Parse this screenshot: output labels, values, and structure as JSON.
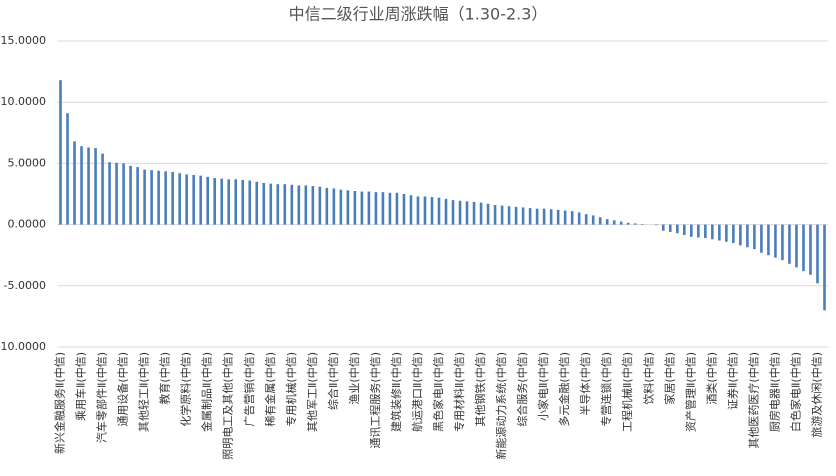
{
  "chart_data": {
    "type": "bar",
    "title": "中信二级行业周涨跌幅（1.30-2.3）",
    "color": "#4a7ebb",
    "grid": true,
    "ylim": [
      -10,
      15
    ],
    "yticks": [
      {
        "value": 15,
        "label": "15.0000"
      },
      {
        "value": 10,
        "label": "10.0000"
      },
      {
        "value": 5,
        "label": "5.0000"
      },
      {
        "value": 0,
        "label": "0.0000"
      },
      {
        "value": -5,
        "label": "-5.0000"
      },
      {
        "value": -10,
        "label": "-10.0000"
      }
    ],
    "categories": [
      "新兴金融服务Ⅱ(中信)",
      null,
      null,
      "乘用车Ⅱ(中信)",
      null,
      null,
      "汽车零部件Ⅱ(中信)",
      null,
      null,
      "通用设备(中信)",
      null,
      null,
      "其他轻工Ⅱ(中信)",
      null,
      null,
      "教育(中信)",
      null,
      null,
      "化学原料(中信)",
      null,
      null,
      "金属制品Ⅱ(中信)",
      null,
      null,
      "照明电工及其他(中信)",
      null,
      null,
      "广告营销(中信)",
      null,
      null,
      "稀有金属(中信)",
      null,
      null,
      "专用机械(中信)",
      null,
      null,
      "其他军工Ⅱ(中信)",
      null,
      null,
      "综合Ⅱ(中信)",
      null,
      null,
      "渔业(中信)",
      null,
      null,
      "通讯工程服务(中信)",
      null,
      null,
      "建筑装修Ⅱ(中信)",
      null,
      null,
      "航运港口Ⅱ(中信)",
      null,
      null,
      "黑色家电Ⅱ(中信)",
      null,
      null,
      "专用材料Ⅱ(中信)",
      null,
      null,
      "其他钢铁(中信)",
      null,
      null,
      "新能源动力系统(中信)",
      null,
      null,
      "综合服务(中信)",
      null,
      null,
      "小家电Ⅱ(中信)",
      null,
      null,
      "多元金融(中信)",
      null,
      null,
      "半导体(中信)",
      null,
      null,
      "专营连锁(中信)",
      null,
      null,
      "工程机械Ⅱ(中信)",
      null,
      null,
      "饮料(中信)",
      null,
      null,
      "家居(中信)",
      null,
      null,
      "资产管理Ⅱ(中信)",
      null,
      null,
      "酒类(中信)",
      null,
      null,
      "证券Ⅱ(中信)",
      null,
      null,
      "其他医药医疗(中信)",
      null,
      null,
      "厨房电器Ⅱ(中信)",
      null,
      null,
      "白色家电Ⅱ(中信)",
      null,
      null,
      "旅游及休闲(中信)",
      null
    ],
    "values": [
      11.8,
      9.1,
      6.8,
      6.4,
      6.3,
      6.25,
      5.8,
      5.1,
      5.05,
      5.0,
      4.8,
      4.7,
      4.5,
      4.45,
      4.4,
      4.35,
      4.3,
      4.2,
      4.1,
      4.05,
      4.0,
      3.9,
      3.8,
      3.75,
      3.7,
      3.7,
      3.65,
      3.6,
      3.5,
      3.4,
      3.35,
      3.3,
      3.3,
      3.25,
      3.2,
      3.2,
      3.15,
      3.1,
      3.0,
      2.95,
      2.85,
      2.8,
      2.75,
      2.7,
      2.7,
      2.65,
      2.65,
      2.6,
      2.6,
      2.5,
      2.4,
      2.3,
      2.3,
      2.25,
      2.2,
      2.1,
      2.0,
      1.95,
      1.9,
      1.85,
      1.8,
      1.7,
      1.6,
      1.55,
      1.5,
      1.45,
      1.4,
      1.35,
      1.3,
      1.3,
      1.25,
      1.2,
      1.15,
      1.1,
      1.0,
      0.85,
      0.75,
      0.6,
      0.45,
      0.35,
      0.25,
      0.15,
      0.1,
      0.05,
      0,
      -0.05,
      -0.5,
      -0.6,
      -0.7,
      -0.85,
      -1.0,
      -1.05,
      -1.1,
      -1.2,
      -1.3,
      -1.4,
      -1.5,
      -1.7,
      -1.85,
      -2.0,
      -2.3,
      -2.5,
      -2.7,
      -2.9,
      -3.2,
      -3.5,
      -3.8,
      -4.1,
      -4.8,
      -7.0
    ]
  }
}
